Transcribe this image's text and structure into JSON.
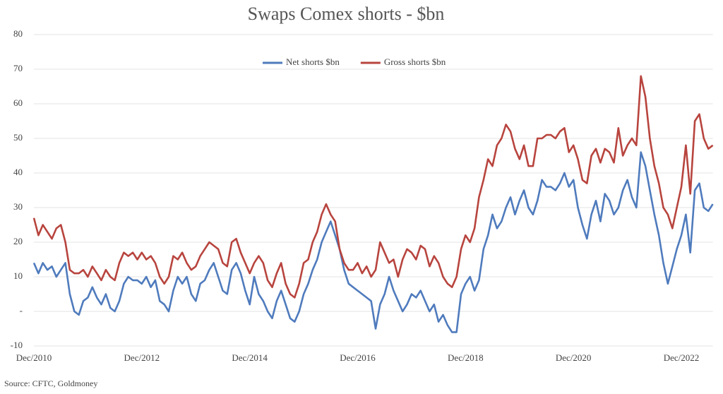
{
  "chart_data": {
    "type": "line",
    "title": "Swaps Comex shorts - $bn",
    "source": "Source: CFTC, Goldmoney",
    "categories": [
      "Dec/2010",
      null,
      null,
      null,
      null,
      null,
      null,
      null,
      null,
      null,
      null,
      null,
      null,
      null,
      null,
      null,
      null,
      null,
      null,
      null,
      null,
      null,
      null,
      null,
      "Dec/2012",
      null,
      null,
      null,
      null,
      null,
      null,
      null,
      null,
      null,
      null,
      null,
      null,
      null,
      null,
      null,
      null,
      null,
      null,
      null,
      null,
      null,
      null,
      null,
      "Dec/2014",
      null,
      null,
      null,
      null,
      null,
      null,
      null,
      null,
      null,
      null,
      null,
      null,
      null,
      null,
      null,
      null,
      null,
      null,
      null,
      null,
      null,
      null,
      null,
      "Dec/2016",
      null,
      null,
      null,
      null,
      null,
      null,
      null,
      null,
      null,
      null,
      null,
      null,
      null,
      null,
      null,
      null,
      null,
      null,
      null,
      null,
      null,
      null,
      null,
      "Dec/2018",
      null,
      null,
      null,
      null,
      null,
      null,
      null,
      null,
      null,
      null,
      null,
      null,
      null,
      null,
      null,
      null,
      null,
      null,
      null,
      null,
      null,
      null,
      null,
      "Dec/2020",
      null,
      null,
      null,
      null,
      null,
      null,
      null,
      null,
      null,
      null,
      null,
      null,
      null,
      null,
      null,
      null,
      null,
      null,
      null,
      null,
      null,
      null,
      null,
      "Dec/2022",
      null,
      null,
      null,
      null,
      null,
      null,
      null
    ],
    "series": [
      {
        "name": "Net shorts $bn",
        "color": "#4f7bbd",
        "values": [
          14,
          11,
          14,
          12,
          13,
          10,
          12,
          14,
          5,
          0,
          -1,
          3,
          4,
          7,
          4,
          2,
          5,
          1,
          0,
          3,
          8,
          10,
          9,
          9,
          8,
          10,
          7,
          9,
          3,
          2,
          0,
          6,
          10,
          8,
          10,
          5,
          3,
          8,
          9,
          12,
          14,
          10,
          6,
          5,
          12,
          14,
          11,
          6,
          2,
          10,
          5,
          3,
          0,
          -2,
          3,
          6,
          2,
          -2,
          -3,
          0,
          5,
          8,
          12,
          15,
          20,
          23,
          26,
          22,
          18,
          12,
          8,
          7,
          6,
          5,
          4,
          3,
          -5,
          2,
          5,
          10,
          6,
          3,
          0,
          2,
          5,
          4,
          6,
          3,
          0,
          2,
          -3,
          -1,
          -4,
          -6,
          -6,
          5,
          8,
          10,
          6,
          9,
          18,
          22,
          28,
          24,
          26,
          30,
          33,
          28,
          32,
          35,
          30,
          28,
          32,
          38,
          36,
          36,
          35,
          37,
          40,
          36,
          38,
          30,
          25,
          21,
          28,
          32,
          26,
          34,
          32,
          28,
          30,
          35,
          38,
          33,
          30,
          46,
          42,
          35,
          28,
          22,
          14,
          8,
          13,
          18,
          22,
          28,
          17,
          35,
          37,
          30,
          29,
          31
        ]
      },
      {
        "name": "Gross shorts $bn",
        "color": "#b8443e",
        "values": [
          27,
          22,
          25,
          23,
          21,
          24,
          25,
          20,
          12,
          11,
          11,
          12,
          10,
          13,
          11,
          9,
          12,
          10,
          9,
          14,
          17,
          16,
          17,
          15,
          17,
          15,
          16,
          14,
          10,
          8,
          10,
          16,
          15,
          17,
          14,
          12,
          13,
          16,
          18,
          20,
          19,
          18,
          14,
          13,
          20,
          21,
          17,
          14,
          11,
          14,
          16,
          14,
          9,
          7,
          11,
          14,
          8,
          5,
          4,
          8,
          14,
          15,
          20,
          23,
          28,
          31,
          28,
          26,
          18,
          14,
          12,
          12,
          14,
          11,
          13,
          10,
          12,
          20,
          17,
          14,
          15,
          10,
          15,
          18,
          17,
          15,
          19,
          18,
          13,
          16,
          14,
          10,
          8,
          7,
          10,
          18,
          22,
          20,
          24,
          33,
          38,
          44,
          42,
          48,
          50,
          54,
          52,
          47,
          44,
          48,
          42,
          42,
          50,
          50,
          51,
          51,
          50,
          52,
          53,
          46,
          48,
          44,
          38,
          37,
          45,
          47,
          43,
          47,
          46,
          43,
          53,
          45,
          48,
          50,
          48,
          68,
          62,
          50,
          42,
          37,
          30,
          28,
          24,
          30,
          36,
          48,
          34,
          55,
          57,
          50,
          47,
          48
        ]
      }
    ],
    "ylim": [
      -10,
      80
    ],
    "yticks": [
      -10,
      {
        "value": 0,
        "label": "-"
      },
      10,
      20,
      30,
      40,
      50,
      60,
      70,
      80
    ],
    "grid": true,
    "legend": "top"
  }
}
